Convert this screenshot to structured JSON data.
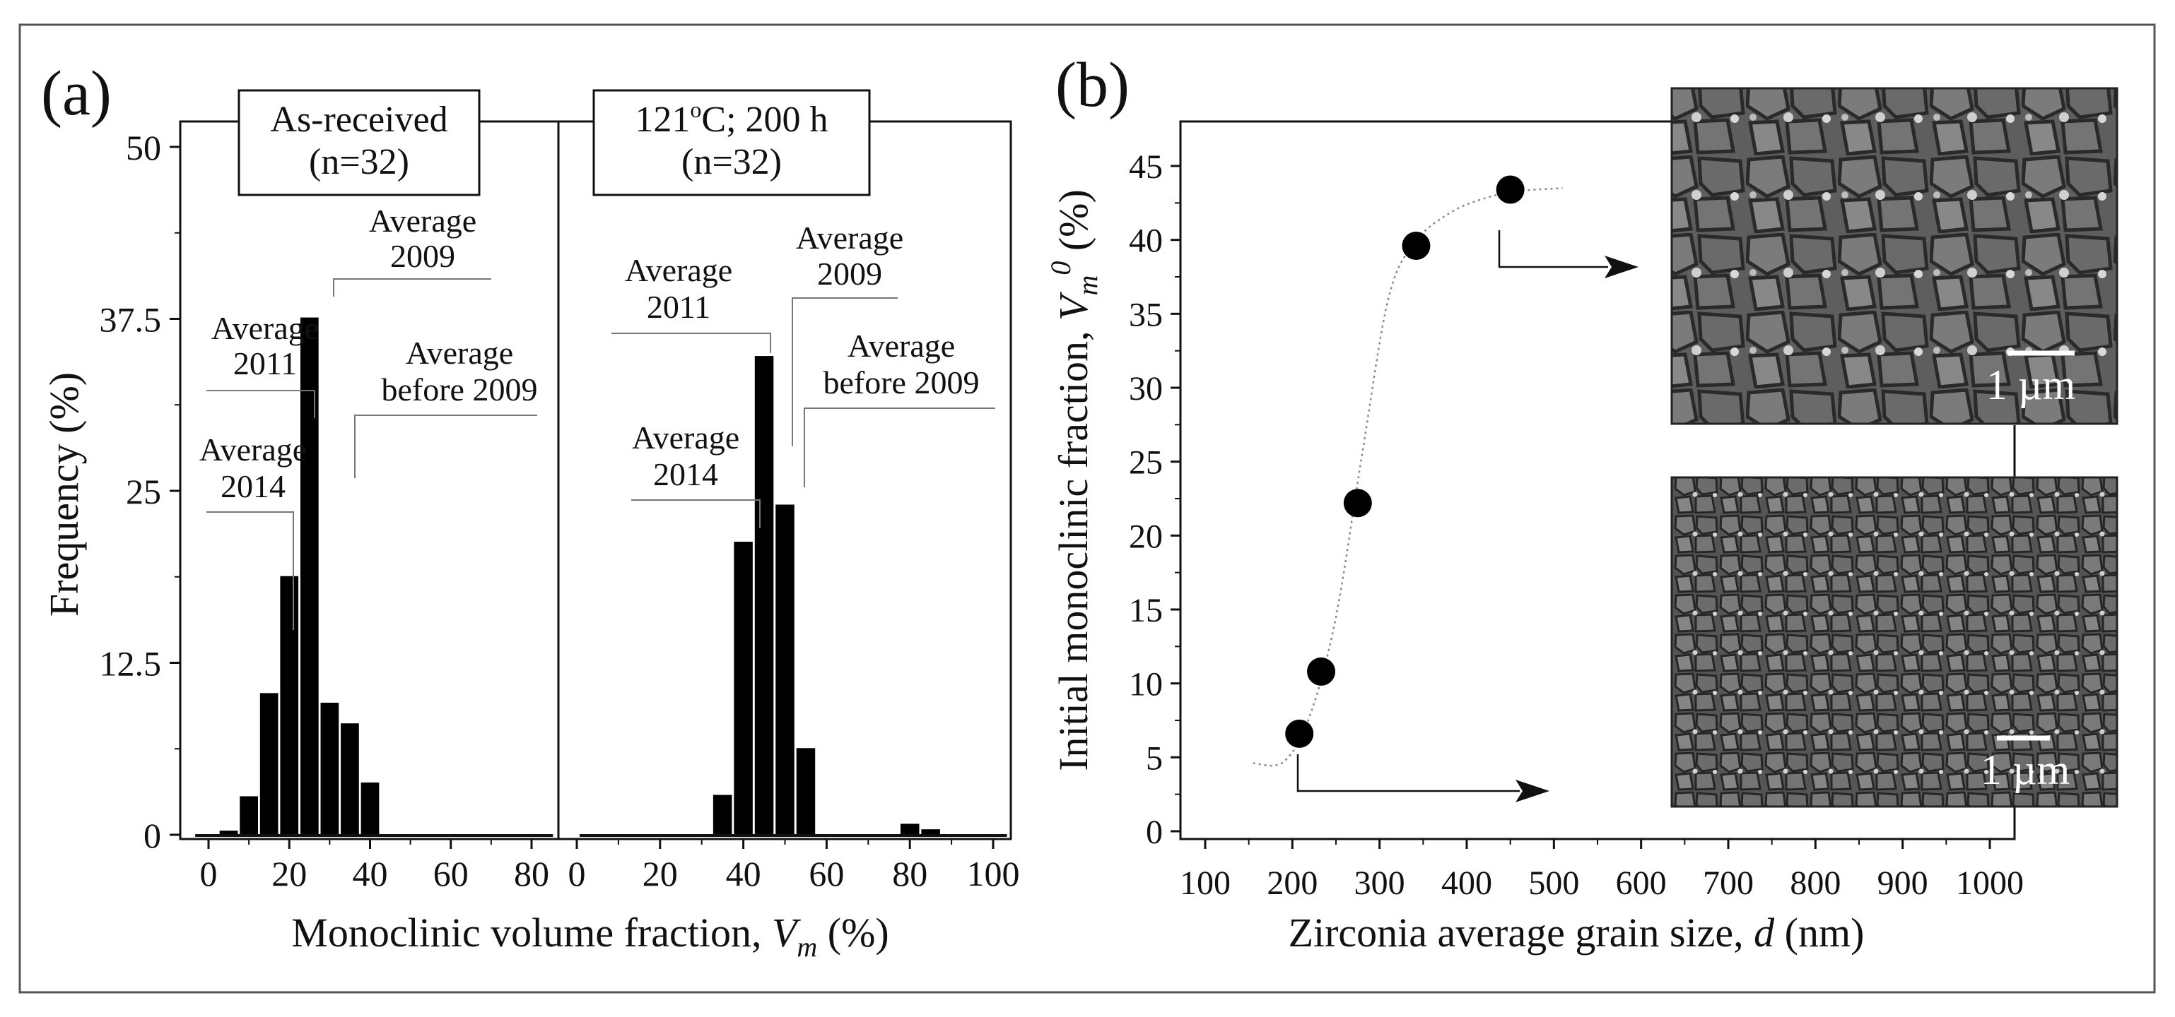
{
  "panel_a": {
    "label": "(a)",
    "ylabel": "Frequency (%)",
    "xlabel_main": "Monoclinic volume fraction, ",
    "xlabel_var": "V",
    "xlabel_sub": "m",
    "xlabel_unit": " (%)",
    "yticks": [
      "0",
      "12.5",
      "25",
      "37.5",
      "50"
    ],
    "left_box": {
      "line1": "As-received",
      "line2": "(n=32)"
    },
    "right_box": {
      "line1_pre": "121",
      "line1_sup": "o",
      "line1_post": "C; 200 h",
      "line2": "(n=32)"
    },
    "left_xticks": [
      "0",
      "20",
      "40",
      "60",
      "80"
    ],
    "right_xticks": [
      "0",
      "20",
      "40",
      "60",
      "80",
      "100"
    ],
    "left_annotations": [
      {
        "l1": "Average",
        "l2": "2009"
      },
      {
        "l1": "Average",
        "l2": "2011"
      },
      {
        "l1": "Average",
        "l2": "before 2009"
      },
      {
        "l1": "Average",
        "l2": "2014"
      }
    ],
    "right_annotations": [
      {
        "l1": "Average",
        "l2": "2011"
      },
      {
        "l1": "Average",
        "l2": "2009"
      },
      {
        "l1": "Average",
        "l2": "before 2009"
      },
      {
        "l1": "Average",
        "l2": "2014"
      }
    ]
  },
  "panel_b": {
    "label": "(b)",
    "ylabel_main": "Initial monoclinic fraction, ",
    "ylabel_var": "V",
    "ylabel_sub": "m",
    "ylabel_sup": "0",
    "ylabel_unit": " (%)",
    "xlabel_main": "Zirconia average grain size, ",
    "xlabel_var": "d",
    "xlabel_unit": " (nm)",
    "yticks": [
      "0",
      "5",
      "10",
      "15",
      "20",
      "25",
      "30",
      "35",
      "40",
      "45"
    ],
    "xticks": [
      "100",
      "200",
      "300",
      "400",
      "500",
      "600",
      "700",
      "800",
      "900",
      "1000"
    ],
    "scalebar_top": "1 µm",
    "scalebar_bottom": "1 µm"
  },
  "chart_data": [
    {
      "type": "bar",
      "panel": "a-left",
      "title": "As-received (n=32)",
      "xlabel": "Monoclinic volume fraction, Vm (%)",
      "ylabel": "Frequency (%)",
      "xlim": [
        -4,
        86
      ],
      "ylim": [
        0,
        50
      ],
      "bin_width": 5,
      "x": [
        5,
        10,
        15,
        20,
        25,
        30,
        35,
        40,
        45,
        50,
        55,
        60,
        65,
        70,
        75,
        80
      ],
      "values": [
        0.3,
        2.8,
        10.3,
        18.8,
        37.6,
        9.6,
        8.1,
        3.8,
        0,
        0,
        0,
        0,
        0,
        0,
        0,
        0
      ]
    },
    {
      "type": "bar",
      "panel": "a-right",
      "title": "121oC; 200 h (n=32)",
      "xlabel": "Monoclinic volume fraction, Vm (%)",
      "ylabel": "Frequency (%)",
      "xlim": [
        0,
        104
      ],
      "ylim": [
        0,
        50
      ],
      "bin_width": 5,
      "x": [
        35,
        40,
        45,
        50,
        55,
        60,
        80,
        85
      ],
      "values": [
        2.9,
        21.3,
        34.8,
        24.0,
        6.3,
        0,
        0.8,
        0.4
      ]
    },
    {
      "type": "scatter",
      "panel": "b",
      "xlabel": "Zirconia average grain size, d (nm)",
      "ylabel": "Initial monoclinic fraction, Vm0 (%)",
      "xlim": [
        60,
        1060
      ],
      "ylim": [
        -1,
        48
      ],
      "x": [
        208,
        233,
        275,
        342,
        450
      ],
      "y": [
        6.6,
        10.8,
        22.2,
        39.6,
        43.4
      ],
      "trend": {
        "x": [
          155,
          190,
          220,
          250,
          280,
          310,
          340,
          380,
          420,
          460,
          510
        ],
        "y": [
          4.6,
          4.7,
          7.8,
          14.5,
          25.5,
          36.0,
          39.8,
          41.8,
          42.8,
          43.3,
          43.5
        ]
      }
    }
  ]
}
